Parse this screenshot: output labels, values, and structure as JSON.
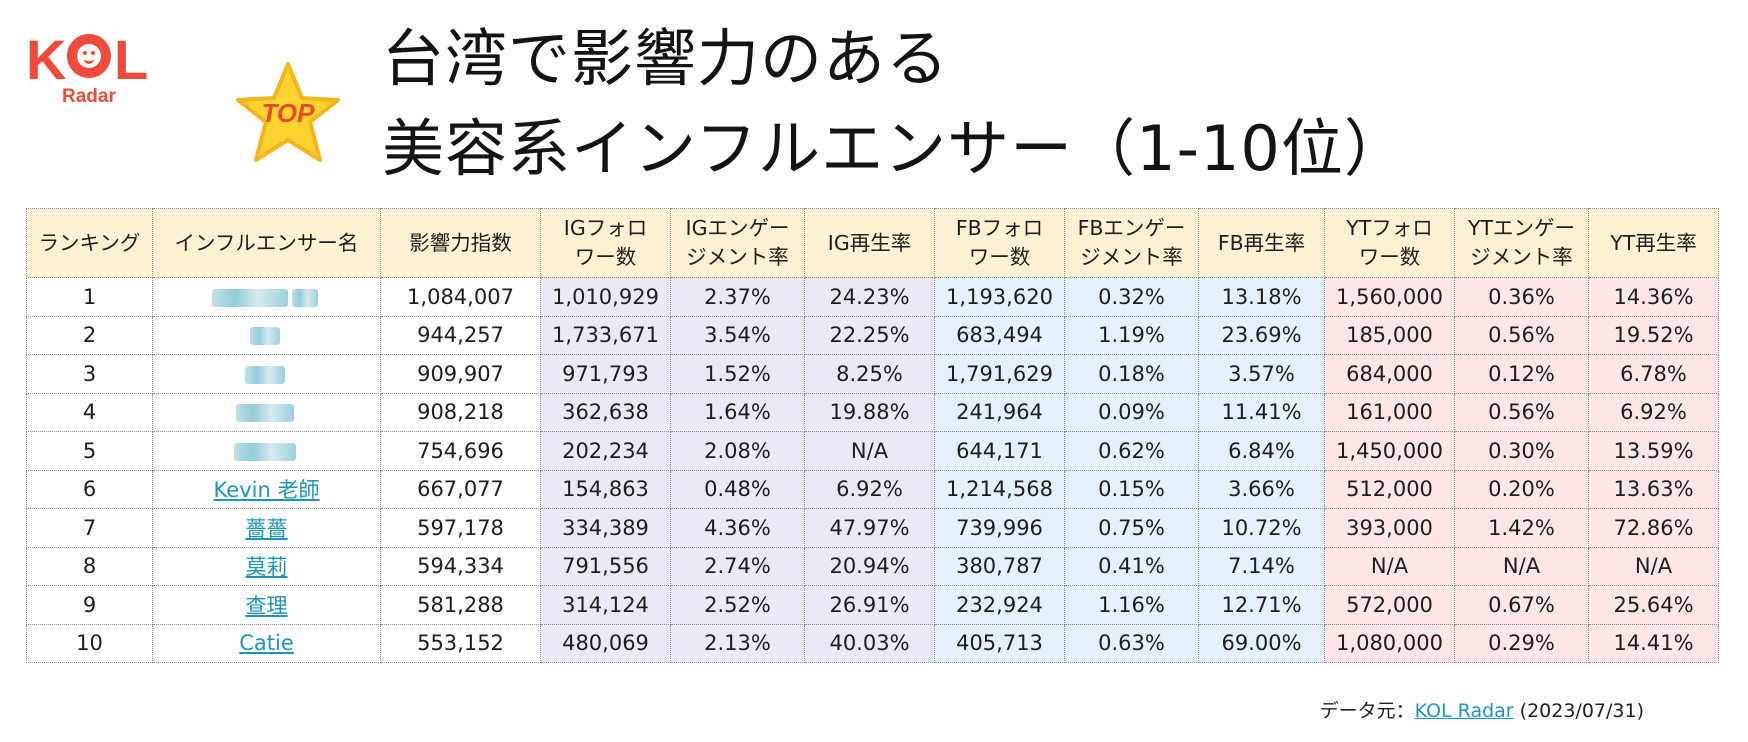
{
  "brand": {
    "logo_text": "KOL",
    "logo_sub": "Radar"
  },
  "badge": {
    "text": "TOP"
  },
  "title": {
    "line1": "台湾で影響力のある",
    "line2": "美容系インフルエンサー（1-10位）"
  },
  "table": {
    "headers": [
      "ランキング",
      "インフルエンサー名",
      "影響力指数",
      "IGフォロワー数",
      "IGエンゲージメント率",
      "IG再生率",
      "FBフォロワー数",
      "FBエンゲージメント率",
      "FB再生率",
      "YTフォロワー数",
      "YTエンゲージメント率",
      "YT再生率"
    ],
    "header_lines": [
      [
        "ランキング"
      ],
      [
        "インフルエンサー名"
      ],
      [
        "影響力指数"
      ],
      [
        "IGフォロ",
        "ワー数"
      ],
      [
        "IGエンゲー",
        "ジメント率"
      ],
      [
        "IG再生率"
      ],
      [
        "FBフォロ",
        "ワー数"
      ],
      [
        "FBエンゲー",
        "ジメント率"
      ],
      [
        "FB再生率"
      ],
      [
        "YTフォロ",
        "ワー数"
      ],
      [
        "YTエンゲー",
        "ジメント率"
      ],
      [
        "YT再生率"
      ]
    ],
    "rows": [
      {
        "rank": "1",
        "name": "",
        "blurred": true,
        "score": "1,084,007",
        "ig_f": "1,010,929",
        "ig_e": "2.37%",
        "ig_p": "24.23%",
        "fb_f": "1,193,620",
        "fb_e": "0.32%",
        "fb_p": "13.18%",
        "yt_f": "1,560,000",
        "yt_e": "0.36%",
        "yt_p": "14.36%"
      },
      {
        "rank": "2",
        "name": "",
        "blurred": true,
        "score": "944,257",
        "ig_f": "1,733,671",
        "ig_e": "3.54%",
        "ig_p": "22.25%",
        "fb_f": "683,494",
        "fb_e": "1.19%",
        "fb_p": "23.69%",
        "yt_f": "185,000",
        "yt_e": "0.56%",
        "yt_p": "19.52%"
      },
      {
        "rank": "3",
        "name": "",
        "blurred": true,
        "score": "909,907",
        "ig_f": "971,793",
        "ig_e": "1.52%",
        "ig_p": "8.25%",
        "fb_f": "1,791,629",
        "fb_e": "0.18%",
        "fb_p": "3.57%",
        "yt_f": "684,000",
        "yt_e": "0.12%",
        "yt_p": "6.78%"
      },
      {
        "rank": "4",
        "name": "",
        "blurred": true,
        "score": "908,218",
        "ig_f": "362,638",
        "ig_e": "1.64%",
        "ig_p": "19.88%",
        "fb_f": "241,964",
        "fb_e": "0.09%",
        "fb_p": "11.41%",
        "yt_f": "161,000",
        "yt_e": "0.56%",
        "yt_p": "6.92%"
      },
      {
        "rank": "5",
        "name": "",
        "blurred": true,
        "score": "754,696",
        "ig_f": "202,234",
        "ig_e": "2.08%",
        "ig_p": "N/A",
        "fb_f": "644,171",
        "fb_e": "0.62%",
        "fb_p": "6.84%",
        "yt_f": "1,450,000",
        "yt_e": "0.30%",
        "yt_p": "13.59%"
      },
      {
        "rank": "6",
        "name": "Kevin 老師",
        "blurred": false,
        "score": "667,077",
        "ig_f": "154,863",
        "ig_e": "0.48%",
        "ig_p": "6.92%",
        "fb_f": "1,214,568",
        "fb_e": "0.15%",
        "fb_p": "3.66%",
        "yt_f": "512,000",
        "yt_e": "0.20%",
        "yt_p": "13.63%"
      },
      {
        "rank": "7",
        "name": "薔薔",
        "blurred": false,
        "score": "597,178",
        "ig_f": "334,389",
        "ig_e": "4.36%",
        "ig_p": "47.97%",
        "fb_f": "739,996",
        "fb_e": "0.75%",
        "fb_p": "10.72%",
        "yt_f": "393,000",
        "yt_e": "1.42%",
        "yt_p": "72.86%"
      },
      {
        "rank": "8",
        "name": "莫莉",
        "blurred": false,
        "score": "594,334",
        "ig_f": "791,556",
        "ig_e": "2.74%",
        "ig_p": "20.94%",
        "fb_f": "380,787",
        "fb_e": "0.41%",
        "fb_p": "7.14%",
        "yt_f": "N/A",
        "yt_e": "N/A",
        "yt_p": "N/A"
      },
      {
        "rank": "9",
        "name": "查理",
        "blurred": false,
        "score": "581,288",
        "ig_f": "314,124",
        "ig_e": "2.52%",
        "ig_p": "26.91%",
        "fb_f": "232,924",
        "fb_e": "1.16%",
        "fb_p": "12.71%",
        "yt_f": "572,000",
        "yt_e": "0.67%",
        "yt_p": "25.64%"
      },
      {
        "rank": "10",
        "name": "Catie",
        "blurred": false,
        "score": "553,152",
        "ig_f": "480,069",
        "ig_e": "2.13%",
        "ig_p": "40.03%",
        "fb_f": "405,713",
        "fb_e": "0.63%",
        "fb_p": "69.00%",
        "yt_f": "1,080,000",
        "yt_e": "0.29%",
        "yt_p": "14.41%"
      }
    ]
  },
  "footer": {
    "prefix": "データ元：",
    "source_link": "KOL Radar",
    "date": " (2023/07/31)"
  },
  "colors": {
    "brand": "#f04b3a",
    "link": "#1c96b8",
    "header_bg": "#fcf1d2",
    "ig_bg": "#ebeaf4",
    "fb_bg": "#e6f0fb",
    "yt_bg": "#fde6e6"
  }
}
